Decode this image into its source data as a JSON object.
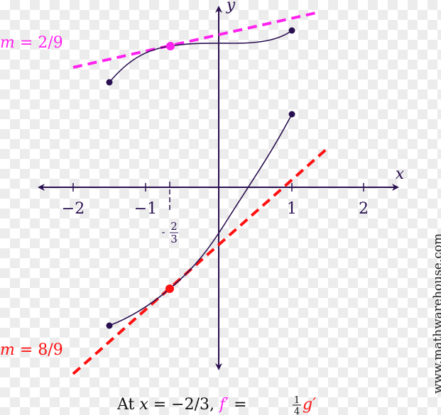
{
  "colors": {
    "axis": "#2a1050",
    "tangent_f": "#ff22ee",
    "tangent_g": "#ff1111"
  },
  "axes": {
    "x_label": "x",
    "y_label": "y",
    "x_ticks": [
      "−2",
      "−1",
      "1",
      "2"
    ],
    "special_tick": {
      "sign": "-",
      "num": "2",
      "den": "3"
    }
  },
  "tangent_f": {
    "label_m": "m",
    "label_eq": " = 2/9"
  },
  "tangent_g": {
    "label_m": "m",
    "label_eq": " = 8/9"
  },
  "caption": {
    "at": "At ",
    "x": "x",
    "eq": " = −2/3, ",
    "f": "f′",
    "eq2": " = ",
    "num": "1",
    "den": "4",
    "g": "g′"
  },
  "watermark": "www.mathwarehouse.com"
}
